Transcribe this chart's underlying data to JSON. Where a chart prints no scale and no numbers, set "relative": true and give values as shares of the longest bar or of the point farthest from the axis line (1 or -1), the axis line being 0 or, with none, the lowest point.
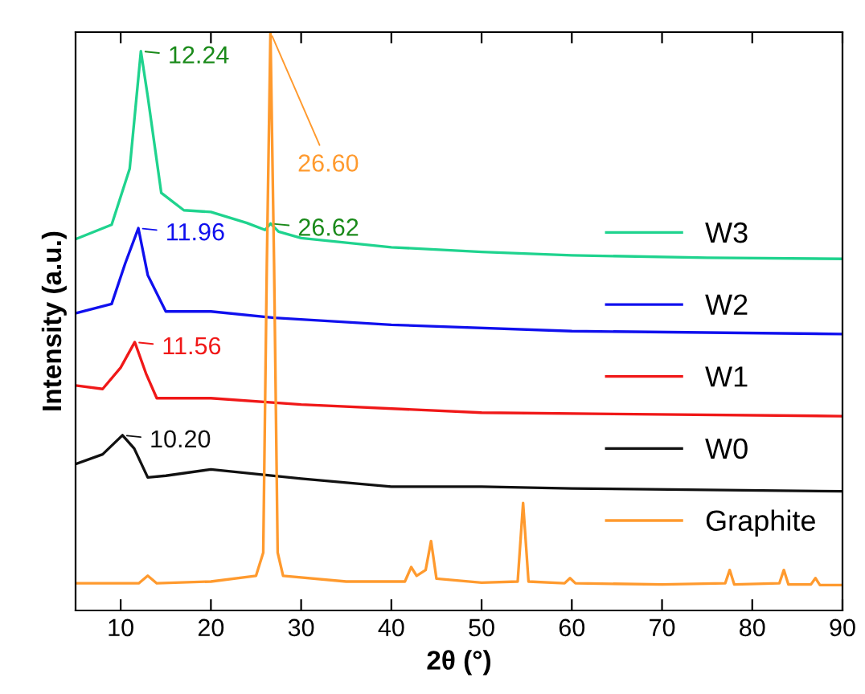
{
  "chart_data": {
    "type": "line",
    "relative": true,
    "xlabel": "2θ (°)",
    "ylabel": "Intensity (a.u.)",
    "xlim": [
      5,
      90
    ],
    "xticks": [
      10,
      20,
      30,
      40,
      50,
      60,
      70,
      80,
      90
    ],
    "tick_labels": "x",
    "legend": "right",
    "grid": false,
    "series": [
      {
        "name": "W3",
        "color": "#1fd38e",
        "x": [
          5,
          9,
          11,
          12.24,
          13,
          14.5,
          17,
          20,
          24,
          26,
          26.62,
          27.5,
          30,
          40,
          50,
          60,
          75,
          90
        ],
        "values": [
          0.642,
          0.667,
          0.764,
          0.967,
          0.889,
          0.722,
          0.692,
          0.689,
          0.67,
          0.658,
          0.669,
          0.655,
          0.644,
          0.628,
          0.62,
          0.614,
          0.61,
          0.608
        ]
      },
      {
        "name": "W2",
        "color": "#1010ee",
        "x": [
          5,
          9,
          10.5,
          11.96,
          13,
          15,
          20,
          27,
          40,
          60,
          90
        ],
        "values": [
          0.514,
          0.53,
          0.6,
          0.661,
          0.58,
          0.517,
          0.517,
          0.506,
          0.494,
          0.483,
          0.478
        ]
      },
      {
        "name": "W1",
        "color": "#f01818",
        "x": [
          5,
          8,
          10,
          11.56,
          12.8,
          14,
          20,
          30,
          50,
          90
        ],
        "values": [
          0.389,
          0.383,
          0.42,
          0.464,
          0.41,
          0.367,
          0.367,
          0.356,
          0.342,
          0.336
        ]
      },
      {
        "name": "W0",
        "color": "#111111",
        "x": [
          5,
          8,
          10.2,
          11.5,
          13,
          15,
          20,
          30,
          40,
          50,
          60,
          90
        ],
        "values": [
          0.253,
          0.27,
          0.303,
          0.28,
          0.23,
          0.233,
          0.244,
          0.228,
          0.214,
          0.214,
          0.211,
          0.206
        ]
      },
      {
        "name": "Graphite",
        "color": "#ff9a2e",
        "x": [
          5,
          12,
          13,
          14,
          20,
          25,
          25.8,
          26.2,
          26.6,
          27.0,
          27.4,
          28,
          35,
          41.5,
          42.2,
          42.8,
          43.8,
          44.4,
          45,
          50,
          54,
          54.6,
          55.2,
          59.2,
          59.8,
          60.4,
          70,
          77,
          77.5,
          78,
          83,
          83.5,
          84,
          86.5,
          87,
          87.5,
          90
        ],
        "values": [
          0.047,
          0.047,
          0.06,
          0.047,
          0.05,
          0.06,
          0.1,
          0.6,
          1,
          0.6,
          0.1,
          0.06,
          0.05,
          0.05,
          0.075,
          0.06,
          0.07,
          0.12,
          0.055,
          0.048,
          0.05,
          0.186,
          0.05,
          0.047,
          0.056,
          0.047,
          0.045,
          0.047,
          0.07,
          0.045,
          0.047,
          0.07,
          0.045,
          0.045,
          0.056,
          0.044,
          0.044
        ]
      }
    ],
    "annotations": [
      {
        "text": "12.24",
        "x": 12.24,
        "y": 0.967
      },
      {
        "text": "26.60",
        "x": 26.6,
        "y": 1
      },
      {
        "text": "26.62",
        "x": 26.62,
        "y": 0.669
      },
      {
        "text": "11.96",
        "x": 11.96,
        "y": 0.661
      },
      {
        "text": "11.56",
        "x": 11.56,
        "y": 0.464
      },
      {
        "text": "10.20",
        "x": 10.2,
        "y": 0.303
      }
    ]
  }
}
